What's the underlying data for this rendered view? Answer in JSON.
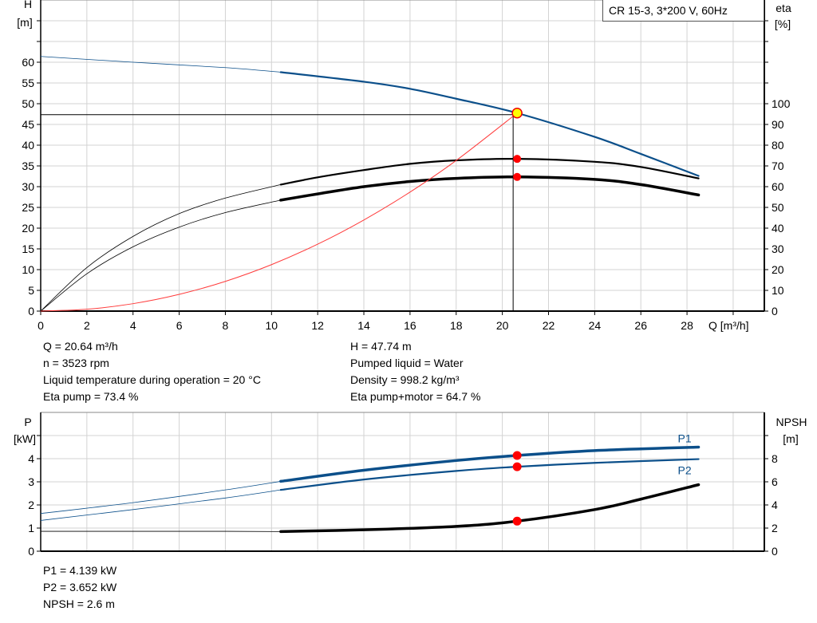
{
  "chart_data": [
    {
      "type": "line",
      "title": "CR 15-3, 3*200 V, 60Hz",
      "xlabel": "Q [m³/h]",
      "ylabel_left": [
        "H",
        "[m]"
      ],
      "ylabel_right": [
        "eta",
        "[%]"
      ],
      "xlim": [
        0,
        31.35
      ],
      "ylim_left": [
        0,
        75
      ],
      "ylim_right": [
        0,
        150
      ],
      "x_ticks": [
        0,
        2,
        4,
        6,
        8,
        10,
        12,
        14,
        16,
        18,
        20,
        22,
        24,
        26,
        28
      ],
      "y_ticks_left": [
        0,
        5,
        10,
        15,
        20,
        25,
        30,
        35,
        40,
        45,
        50,
        55,
        60
      ],
      "y_ticks_right": [
        0,
        10,
        20,
        30,
        40,
        50,
        60,
        70,
        80,
        90,
        100
      ],
      "grid": true,
      "series": [
        {
          "axis": "left",
          "color": "#0b4f8a",
          "thin_until": 10.4,
          "x": [
            0,
            4,
            8,
            10.4,
            14,
            16,
            18,
            20.64,
            24,
            26,
            28.5
          ],
          "y": [
            61.4,
            60.0,
            58.7,
            57.6,
            55.3,
            53.6,
            51.2,
            47.74,
            42.0,
            37.9,
            32.6
          ]
        },
        {
          "axis": "right",
          "color": "#000000",
          "thin_until": 10.4,
          "x": [
            0,
            2,
            4,
            6,
            8,
            10.4,
            12,
            14,
            16,
            18,
            20.64,
            24,
            26,
            28.5
          ],
          "y": [
            0,
            21,
            36,
            47,
            54.5,
            61,
            64.5,
            68,
            71,
            72.7,
            73.4,
            72,
            69.5,
            64
          ]
        },
        {
          "axis": "right",
          "color": "#000000",
          "thick": true,
          "thin_until": 10.4,
          "x": [
            0,
            2,
            4,
            6,
            8,
            10.4,
            12,
            14,
            16,
            18,
            20.64,
            24,
            26,
            28.5
          ],
          "y": [
            0,
            18,
            31,
            40.5,
            47.5,
            53.5,
            56.5,
            60,
            62.5,
            64,
            64.7,
            63.5,
            61,
            56
          ]
        },
        {
          "axis": "left",
          "color": "#ff3b3b",
          "system_curve": true,
          "x": [
            0,
            2,
            4,
            6,
            8,
            10,
            12,
            14,
            16,
            18,
            20.64
          ],
          "y": [
            0,
            0.45,
            1.79,
            4.03,
            7.17,
            11.2,
            16.14,
            21.97,
            28.69,
            36.31,
            47.74
          ]
        }
      ],
      "operating_point": {
        "Q": 20.64,
        "H": 47.74,
        "eta_pump": 73.4,
        "eta_pump_motor": 64.7
      }
    },
    {
      "type": "line",
      "xlim": [
        0,
        31.35
      ],
      "ylabel_left": [
        "P",
        "[kW]"
      ],
      "ylabel_right": [
        "NPSH",
        "[m]"
      ],
      "ylim_left": [
        0,
        6
      ],
      "ylim_right": [
        0,
        12
      ],
      "y_ticks_left": [
        0,
        1,
        2,
        3,
        4
      ],
      "y_ticks_right": [
        0,
        2,
        4,
        6,
        8
      ],
      "grid": true,
      "series": [
        {
          "name": "P1",
          "axis": "left",
          "color": "#0b4f8a",
          "thick": true,
          "thin_until": 10.4,
          "x": [
            0,
            4,
            8,
            10.4,
            14,
            18,
            20.64,
            24,
            28.5
          ],
          "y": [
            1.63,
            2.1,
            2.65,
            3.02,
            3.5,
            3.92,
            4.139,
            4.35,
            4.5
          ]
        },
        {
          "name": "P2",
          "axis": "left",
          "color": "#0b4f8a",
          "thin_until": 10.4,
          "x": [
            0,
            4,
            8,
            10.4,
            14,
            18,
            20.64,
            24,
            28.5
          ],
          "y": [
            1.33,
            1.8,
            2.3,
            2.65,
            3.1,
            3.47,
            3.652,
            3.82,
            3.98
          ]
        },
        {
          "axis": "right",
          "color": "#000000",
          "thick": true,
          "thin_until": 10.4,
          "x": [
            0,
            4,
            8,
            10.4,
            14,
            18,
            20.64,
            24,
            26,
            28.5
          ],
          "y": [
            1.72,
            1.72,
            1.72,
            1.7,
            1.85,
            2.15,
            2.6,
            3.6,
            4.5,
            5.75
          ]
        }
      ],
      "operating_point": {
        "Q": 20.64,
        "P1": 4.139,
        "P2": 3.652,
        "NPSH": 2.6
      }
    }
  ],
  "info_top_left": [
    "Q = 20.64 m³/h",
    "n = 3523 rpm",
    "Liquid temperature during operation = 20 °C",
    "Eta pump = 73.4 %"
  ],
  "info_top_right": [
    "H = 47.74 m",
    "Pumped liquid = Water",
    "Density = 998.2 kg/m³",
    "Eta pump+motor = 64.7 %"
  ],
  "info_bottom": [
    "P1 = 4.139 kW",
    "P2 = 3.652 kW",
    "NPSH = 2.6 m"
  ],
  "colors": {
    "grid": "#d3d3d3",
    "blue": "#0b4f8a",
    "red": "#ff0000",
    "marker_yellow": "#ffff00"
  }
}
